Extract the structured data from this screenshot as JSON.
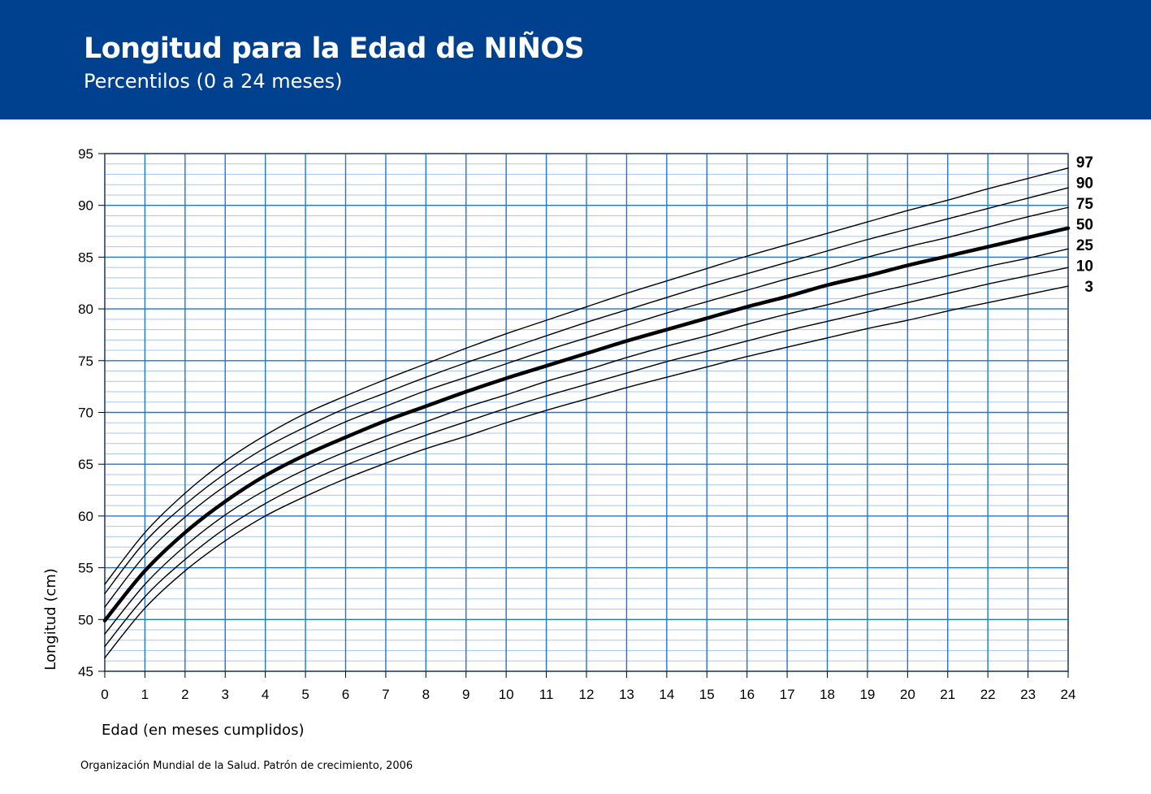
{
  "header": {
    "title": "Longitud para la Edad de NIÑOS",
    "subtitle": "Percentilos (0 a 24 meses)"
  },
  "footer": {
    "source": "Organización Mundial de la Salud. Patrón de crecimiento, 2006"
  },
  "colors": {
    "header_bg": "#00418f",
    "major_grid": "#1f74d8",
    "minor_grid": "#a9c8ec",
    "curve": "#000000"
  },
  "chart_data": {
    "type": "line",
    "xlabel": "Edad (en meses cumplidos)",
    "ylabel": "Longitud (cm)",
    "xlim": [
      0,
      24
    ],
    "ylim": [
      45,
      95
    ],
    "x_ticks": [
      "0",
      "1",
      "2",
      "3",
      "4",
      "5",
      "6",
      "7",
      "8",
      "9",
      "10",
      "11",
      "12",
      "13",
      "14",
      "15",
      "16",
      "17",
      "18",
      "19",
      "20",
      "21",
      "22",
      "23",
      "24"
    ],
    "y_ticks": [
      "45",
      "50",
      "55",
      "60",
      "65",
      "70",
      "75",
      "80",
      "85",
      "90",
      "95"
    ],
    "grid": true,
    "legend_placement": "right",
    "x": [
      0,
      1,
      2,
      3,
      4,
      5,
      6,
      7,
      8,
      9,
      10,
      11,
      12,
      13,
      14,
      15,
      16,
      17,
      18,
      19,
      20,
      21,
      22,
      23,
      24
    ],
    "series": [
      {
        "name": "97",
        "values": [
          53.4,
          58.4,
          62.2,
          65.3,
          67.8,
          69.9,
          71.6,
          73.2,
          74.7,
          76.2,
          77.6,
          78.9,
          80.2,
          81.5,
          82.7,
          83.9,
          85.1,
          86.2,
          87.3,
          88.4,
          89.5,
          90.5,
          91.6,
          92.6,
          93.6
        ]
      },
      {
        "name": "90",
        "values": [
          52.5,
          57.5,
          61.1,
          64.1,
          66.6,
          68.6,
          70.4,
          71.9,
          73.4,
          74.8,
          76.1,
          77.4,
          78.7,
          79.9,
          81.1,
          82.3,
          83.4,
          84.5,
          85.6,
          86.7,
          87.7,
          88.7,
          89.7,
          90.7,
          91.7
        ]
      },
      {
        "name": "75",
        "values": [
          51.2,
          56.2,
          59.9,
          62.9,
          65.3,
          67.3,
          69.1,
          70.6,
          72.1,
          73.4,
          74.7,
          76.0,
          77.2,
          78.4,
          79.6,
          80.7,
          81.8,
          82.9,
          83.9,
          85.0,
          86.0,
          86.9,
          87.9,
          88.9,
          89.8
        ]
      },
      {
        "name": "50",
        "values": [
          49.9,
          54.7,
          58.4,
          61.4,
          63.9,
          65.9,
          67.6,
          69.2,
          70.6,
          72.0,
          73.3,
          74.5,
          75.7,
          76.9,
          78.0,
          79.1,
          80.2,
          81.2,
          82.3,
          83.2,
          84.2,
          85.1,
          86.0,
          86.9,
          87.8
        ]
      },
      {
        "name": "25",
        "values": [
          48.6,
          53.4,
          57.1,
          60.1,
          62.5,
          64.5,
          66.2,
          67.7,
          69.1,
          70.5,
          71.7,
          73.0,
          74.1,
          75.3,
          76.4,
          77.4,
          78.5,
          79.5,
          80.4,
          81.4,
          82.3,
          83.2,
          84.1,
          84.9,
          85.8
        ]
      },
      {
        "name": "10",
        "values": [
          47.4,
          52.2,
          55.8,
          58.8,
          61.2,
          63.2,
          64.9,
          66.4,
          67.8,
          69.1,
          70.4,
          71.6,
          72.7,
          73.8,
          74.9,
          75.9,
          76.9,
          77.9,
          78.8,
          79.7,
          80.6,
          81.5,
          82.4,
          83.2,
          84.0
        ]
      },
      {
        "name": "3",
        "values": [
          46.3,
          51.1,
          54.7,
          57.6,
          60.0,
          61.9,
          63.6,
          65.1,
          66.5,
          67.7,
          69.0,
          70.2,
          71.3,
          72.4,
          73.4,
          74.4,
          75.4,
          76.3,
          77.2,
          78.1,
          78.9,
          79.8,
          80.6,
          81.4,
          82.2
        ]
      }
    ],
    "emphasized_series": "50"
  }
}
